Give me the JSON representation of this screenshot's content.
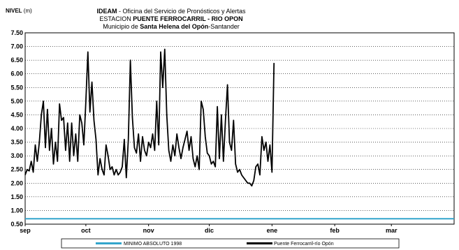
{
  "header": {
    "ylabel_bold": "NIVEL",
    "ylabel_unit": " (m)",
    "title_line1_bold": "IDEAM",
    "title_line1_rest": " - Oficina del Servicio de Pronósticos y Alertas",
    "title_line2_pre": "ESTACION ",
    "title_line2_bold": "PUENTE FERROCARRIL - RIO OPON",
    "title_line3_pre": "Municipio de ",
    "title_line3_bold": "Santa Helena del Opón",
    "title_line3_post": "-Santander"
  },
  "chart_data": {
    "type": "line",
    "title": "IDEAM - Oficina del Servicio de Pronósticos y Alertas / ESTACION PUENTE FERROCARRIL - RIO OPON / Municipio de Santa Helena del Opón-Santander",
    "ylabel": "NIVEL (m)",
    "ylim": [
      0.5,
      7.5
    ],
    "yticks": [
      "0.50",
      "1.00",
      "1.50",
      "2.00",
      "2.50",
      "3.00",
      "3.50",
      "4.00",
      "4.50",
      "5.00",
      "5.50",
      "6.00",
      "6.50",
      "7.00",
      "7.50"
    ],
    "xlim": [
      0,
      212
    ],
    "xticks": [
      {
        "label": "sep",
        "x": 0
      },
      {
        "label": "oct",
        "x": 30
      },
      {
        "label": "nov",
        "x": 61
      },
      {
        "label": "dic",
        "x": 91
      },
      {
        "label": "ene",
        "x": 122
      },
      {
        "label": "feb",
        "x": 153
      },
      {
        "label": "mar",
        "x": 181
      }
    ],
    "grid": true,
    "legend_position": "bottom",
    "series": [
      {
        "name": "MINIMO ABSOLUTO 1998",
        "color": "#33a5cc",
        "x": [
          0,
          212
        ],
        "values": [
          0.7,
          0.7
        ]
      },
      {
        "name": "Puente Ferrocarril-río Opón",
        "color": "#000000",
        "x": [
          0,
          1,
          2,
          3,
          4,
          5,
          6,
          7,
          8,
          9,
          10,
          11,
          12,
          13,
          14,
          15,
          16,
          17,
          18,
          19,
          20,
          21,
          22,
          23,
          24,
          25,
          26,
          27,
          28,
          29,
          30,
          31,
          32,
          33,
          34,
          35,
          36,
          37,
          38,
          39,
          40,
          41,
          42,
          43,
          44,
          45,
          46,
          47,
          48,
          49,
          50,
          51,
          52,
          53,
          54,
          55,
          56,
          57,
          58,
          59,
          60,
          61,
          62,
          63,
          64,
          65,
          66,
          67,
          68,
          69,
          70,
          71,
          72,
          73,
          74,
          75,
          76,
          77,
          78,
          79,
          80,
          81,
          82,
          83,
          84,
          85,
          86,
          87,
          88,
          89,
          90,
          91,
          92,
          93,
          94,
          95,
          96,
          97,
          98,
          99,
          100,
          101,
          102,
          103,
          104,
          105,
          106,
          107,
          108,
          109,
          110,
          111,
          112,
          113,
          114,
          115,
          116,
          117,
          118,
          119,
          120,
          121,
          122,
          123
        ],
        "values": [
          2.3,
          2.5,
          2.45,
          2.8,
          2.4,
          3.4,
          2.8,
          3.5,
          4.5,
          5.0,
          3.3,
          4.7,
          3.2,
          4.0,
          2.7,
          3.5,
          2.8,
          4.9,
          4.3,
          4.4,
          3.2,
          4.2,
          2.8,
          4.2,
          3.0,
          3.8,
          2.8,
          4.5,
          4.2,
          3.4,
          5.0,
          6.8,
          4.6,
          5.7,
          4.3,
          3.6,
          2.3,
          2.9,
          2.5,
          2.3,
          3.4,
          3.0,
          2.5,
          2.6,
          2.3,
          2.5,
          2.3,
          2.4,
          2.6,
          3.6,
          2.2,
          3.6,
          6.5,
          4.4,
          3.3,
          3.1,
          3.8,
          2.8,
          3.7,
          3.2,
          3.0,
          3.5,
          3.3,
          3.8,
          3.2,
          5.0,
          3.4,
          6.8,
          5.5,
          6.9,
          4.5,
          3.2,
          2.8,
          3.4,
          3.0,
          3.8,
          3.3,
          2.9,
          3.3,
          3.6,
          3.9,
          3.2,
          3.7,
          2.9,
          2.6,
          3.0,
          2.5,
          5.0,
          4.7,
          3.7,
          3.1,
          3.0,
          2.7,
          2.8,
          2.6,
          4.8,
          2.9,
          4.5,
          2.8,
          4.3,
          5.6,
          3.5,
          3.2,
          4.3,
          2.7,
          2.4,
          2.5,
          2.3,
          2.2,
          2.1,
          2.0,
          2.0,
          1.9,
          2.1,
          2.6,
          2.7,
          2.3,
          3.7,
          3.2,
          3.5,
          2.8,
          3.4,
          2.4,
          6.4
        ]
      }
    ]
  }
}
